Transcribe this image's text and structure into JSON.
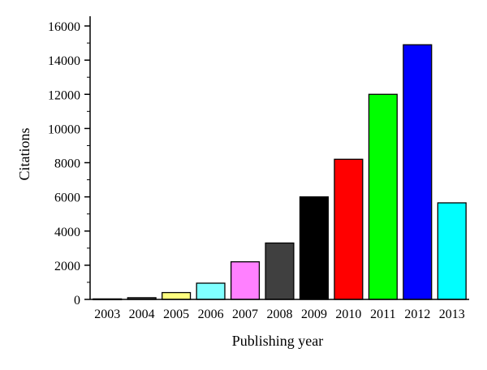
{
  "chart_data": {
    "type": "bar",
    "xlabel": "Publishing year",
    "ylabel": "Citations",
    "categories": [
      "2003",
      "2004",
      "2005",
      "2006",
      "2007",
      "2008",
      "2009",
      "2010",
      "2011",
      "2012",
      "2013"
    ],
    "values": [
      30,
      100,
      400,
      950,
      2200,
      3300,
      6000,
      8200,
      12000,
      14900,
      5650
    ],
    "bar_colors": [
      "#ffffff",
      "#555555",
      "#ffff80",
      "#80ffff",
      "#ff80ff",
      "#404040",
      "#000000",
      "#ff0000",
      "#00ff00",
      "#0000ff",
      "#00ffff"
    ],
    "ylim": [
      0,
      16000
    ],
    "y_ticks": [
      0,
      2000,
      4000,
      6000,
      8000,
      10000,
      12000,
      14000,
      16000
    ],
    "y_tick_labels": [
      "0",
      "2000",
      "4000",
      "6000",
      "8000",
      "10000",
      "12000",
      "14000",
      "16000"
    ],
    "grid": false,
    "legend": "none"
  }
}
